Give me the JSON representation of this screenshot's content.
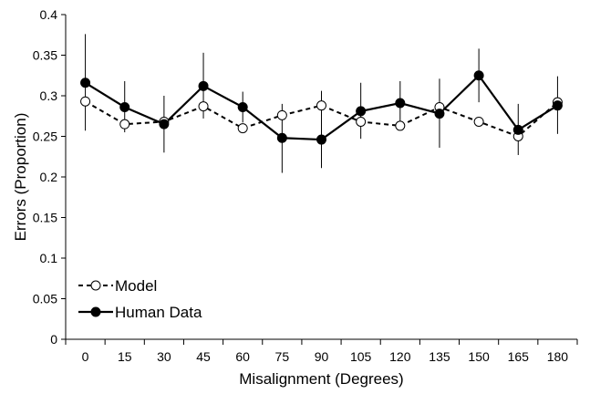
{
  "chart_data": {
    "type": "line",
    "xlabel": "Misalignment (Degrees)",
    "ylabel": "Errors (Proportion)",
    "x": [
      0,
      15,
      30,
      45,
      60,
      75,
      90,
      105,
      120,
      135,
      150,
      165,
      180
    ],
    "x_tick_labels": [
      "0",
      "15",
      "30",
      "45",
      "60",
      "75",
      "90",
      "105",
      "120",
      "135",
      "150",
      "165",
      "180"
    ],
    "y_ticks": [
      0,
      0.05,
      0.1,
      0.15,
      0.2,
      0.25,
      0.3,
      0.35,
      0.4
    ],
    "y_tick_labels": [
      "0",
      "0.05",
      "0.1",
      "0.15",
      "0.2",
      "0.25",
      "0.3",
      "0.35",
      "0.4"
    ],
    "ylim": [
      0,
      0.4
    ],
    "grid": false,
    "legend_position": "bottom-left",
    "series": [
      {
        "name": "Model",
        "style": "dashed",
        "marker": "open-circle",
        "values": [
          0.293,
          0.265,
          0.268,
          0.287,
          0.26,
          0.276,
          0.288,
          0.268,
          0.263,
          0.286,
          0.268,
          0.25,
          0.292
        ]
      },
      {
        "name": "Human Data",
        "style": "solid",
        "marker": "filled-circle",
        "values": [
          0.316,
          0.286,
          0.265,
          0.312,
          0.286,
          0.248,
          0.246,
          0.281,
          0.291,
          0.278,
          0.325,
          0.258,
          0.288
        ],
        "error_upper": [
          0.376,
          0.318,
          0.3,
          0.353,
          0.305,
          0.29,
          0.306,
          0.316,
          0.318,
          0.321,
          0.358,
          0.29,
          0.324
        ],
        "error_lower": [
          0.257,
          0.255,
          0.23,
          0.272,
          0.267,
          0.205,
          0.211,
          0.247,
          0.264,
          0.236,
          0.292,
          0.227,
          0.253
        ]
      }
    ],
    "colors": {
      "axis": "#000000",
      "line": "#000000",
      "open_marker_fill": "#ffffff",
      "filled_marker_fill": "#000000"
    }
  }
}
